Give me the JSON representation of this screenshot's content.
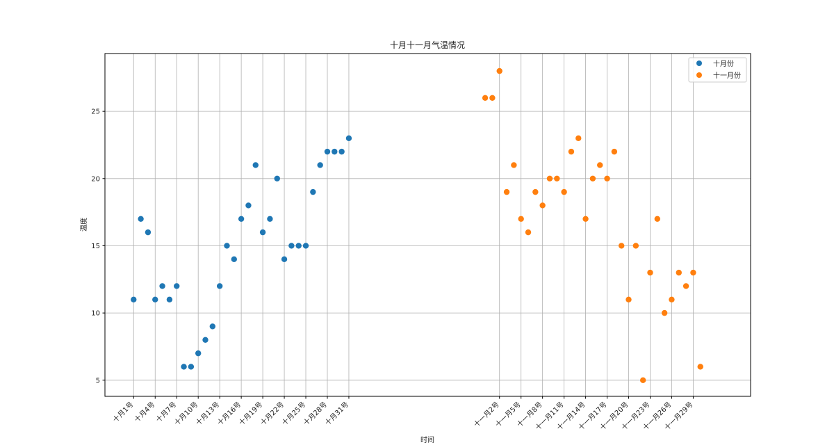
{
  "chart_data": {
    "type": "scatter",
    "title": "十月十一月气温情况",
    "xlabel": "时间",
    "ylabel": "温度",
    "xlim": [
      -4,
      86
    ],
    "ylim": [
      3.8,
      29.3
    ],
    "yticks": [
      5,
      10,
      15,
      20,
      25
    ],
    "grid": true,
    "legend_position": "top-right",
    "xticks": [
      {
        "x": 0,
        "label": "十月1号"
      },
      {
        "x": 3,
        "label": "十月4号"
      },
      {
        "x": 6,
        "label": "十月7号"
      },
      {
        "x": 9,
        "label": "十月10号"
      },
      {
        "x": 12,
        "label": "十月13号"
      },
      {
        "x": 15,
        "label": "十月16号"
      },
      {
        "x": 18,
        "label": "十月19号"
      },
      {
        "x": 21,
        "label": "十月22号"
      },
      {
        "x": 24,
        "label": "十月25号"
      },
      {
        "x": 27,
        "label": "十月28号"
      },
      {
        "x": 30,
        "label": "十月31号"
      },
      {
        "x": 51,
        "label": "十一月2号"
      },
      {
        "x": 54,
        "label": "十一月5号"
      },
      {
        "x": 57,
        "label": "十一月8号"
      },
      {
        "x": 60,
        "label": "十一月11号"
      },
      {
        "x": 63,
        "label": "十一月14号"
      },
      {
        "x": 66,
        "label": "十一月17号"
      },
      {
        "x": 69,
        "label": "十一月20号"
      },
      {
        "x": 72,
        "label": "十一月23号"
      },
      {
        "x": 75,
        "label": "十一月26号"
      },
      {
        "x": 78,
        "label": "十一月29号"
      }
    ],
    "series": [
      {
        "name": "十月份",
        "color": "#1f77b4",
        "x_start": 0,
        "values": [
          11,
          17,
          16,
          11,
          12,
          11,
          12,
          6,
          6,
          7,
          8,
          9,
          12,
          15,
          14,
          17,
          18,
          21,
          16,
          17,
          20,
          14,
          15,
          15,
          15,
          19,
          21,
          22,
          22,
          22,
          23
        ]
      },
      {
        "name": "十一月份",
        "color": "#ff7f0e",
        "x_start": 49,
        "values": [
          26,
          26,
          28,
          19,
          21,
          17,
          16,
          19,
          18,
          20,
          20,
          19,
          22,
          23,
          17,
          20,
          21,
          20,
          22,
          15,
          11,
          15,
          5,
          13,
          17,
          10,
          11,
          13,
          12,
          13,
          6
        ]
      }
    ]
  }
}
